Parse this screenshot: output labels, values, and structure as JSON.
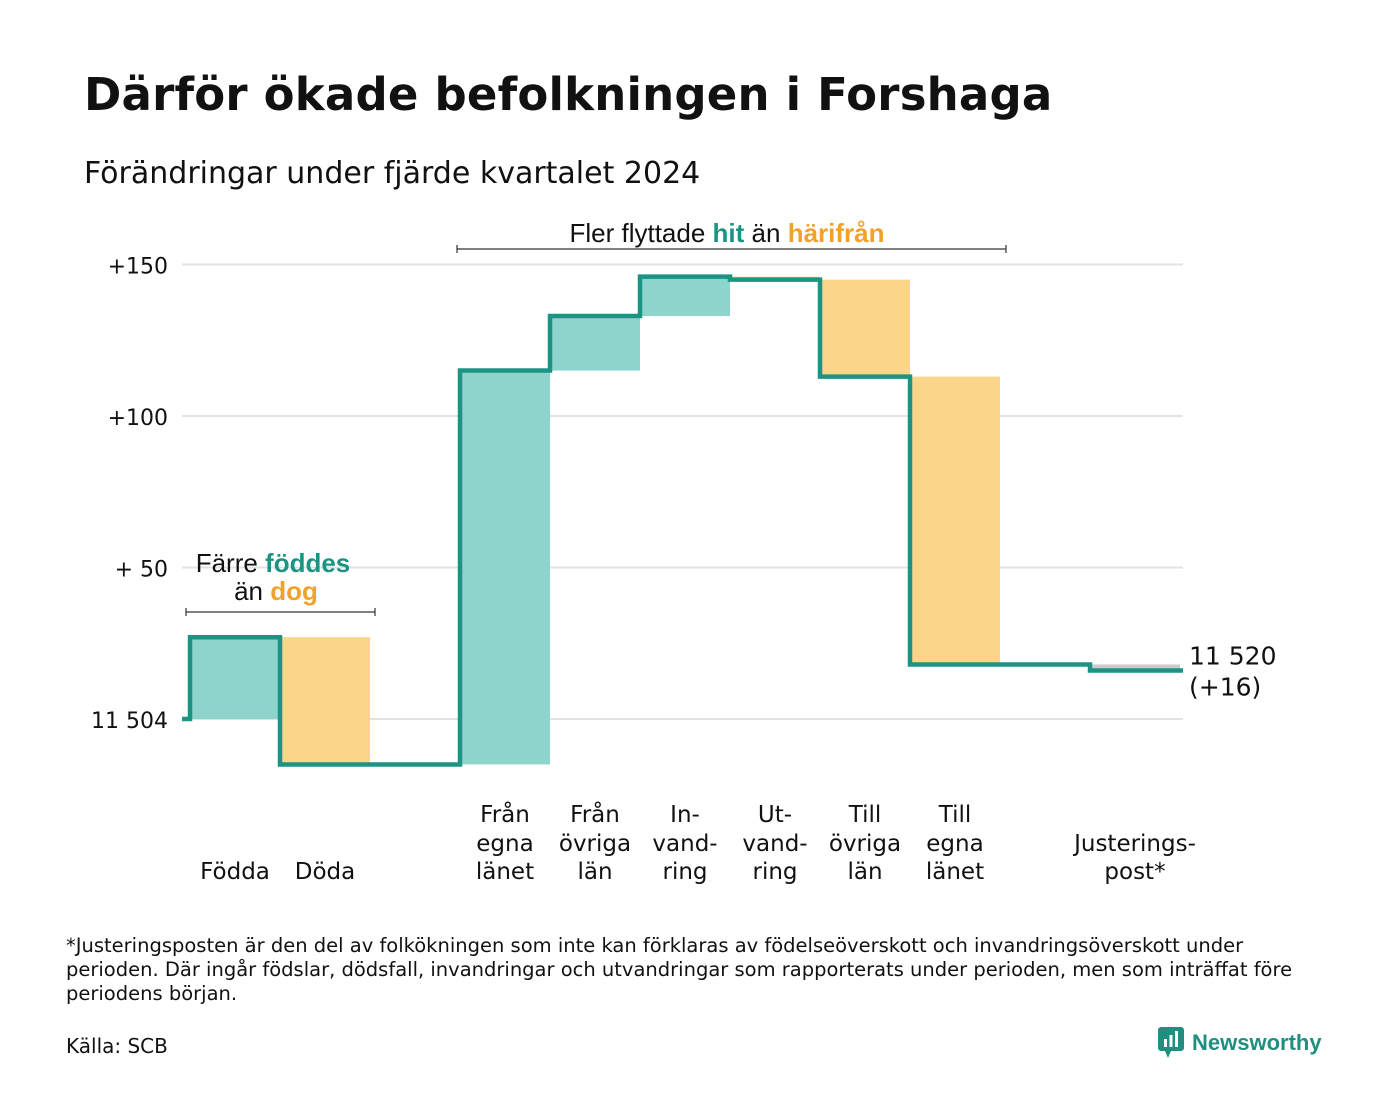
{
  "title": "Därför ökade befolkningen i Forshaga",
  "subtitle": "Förändringar under fjärde kvartalet 2024",
  "footnote": "*Justeringsposten är den del av folkökningen som inte kan förklaras av födelseöverskott och invandringsöverskott under perioden. Där ingår födslar, dödsfall, invandringar och utvandringar som rapporterats under perioden, men som inträffat före periodens början.",
  "source": "Källa: SCB",
  "brand": "Newsworthy",
  "colors": {
    "increase_fill": "#8dd5cc",
    "decrease_fill": "#fad58a",
    "adjust_fill": "#cccccc",
    "line": "#1b9483",
    "teal_text": "#1b9483",
    "orange_text": "#f2a22c",
    "grid": "#e2e2e2"
  },
  "chart_data": {
    "type": "waterfall",
    "start_value": 11504,
    "start_label": "11 504",
    "end_value": 11520,
    "end_label": "11 520",
    "end_change_label": "(+16)",
    "y_ticks": [
      {
        "value": 0,
        "label": "11 504"
      },
      {
        "value": 50,
        "label": "+ 50"
      },
      {
        "value": 100,
        "label": "+100"
      },
      {
        "value": 150,
        "label": "+150"
      }
    ],
    "ylim": [
      -17,
      150
    ],
    "steps": [
      {
        "label": [
          "",
          "",
          "Födda"
        ],
        "change": 27,
        "kind": "increase"
      },
      {
        "label": [
          "",
          "",
          "Döda"
        ],
        "change": -42,
        "kind": "decrease"
      },
      {
        "label": [
          "",
          "",
          ""
        ],
        "change": 0,
        "kind": "gap"
      },
      {
        "label": [
          "Från",
          "egna",
          "länet"
        ],
        "change": 130,
        "kind": "increase"
      },
      {
        "label": [
          "Från",
          "övriga",
          "län"
        ],
        "change": 18,
        "kind": "increase"
      },
      {
        "label": [
          "In-",
          "vand-",
          "ring"
        ],
        "change": 13,
        "kind": "increase"
      },
      {
        "label": [
          "Ut-",
          "vand-",
          "ring"
        ],
        "change": -1,
        "kind": "decrease"
      },
      {
        "label": [
          "Till",
          "övriga",
          "län"
        ],
        "change": -32,
        "kind": "decrease"
      },
      {
        "label": [
          "Till",
          "egna",
          "länet"
        ],
        "change": -95,
        "kind": "decrease"
      },
      {
        "label": [
          "",
          "",
          ""
        ],
        "change": 0,
        "kind": "gap"
      },
      {
        "label": [
          "",
          "Justerings-",
          "post*"
        ],
        "change": -2,
        "kind": "adjust"
      }
    ],
    "annotations": {
      "births": {
        "lines": [
          [
            "Färre ",
            "föddes"
          ],
          [
            "än ",
            "dog"
          ]
        ]
      },
      "migration": {
        "parts": [
          "Fler flyttade ",
          "hit",
          " än ",
          "härifrån"
        ]
      }
    }
  }
}
